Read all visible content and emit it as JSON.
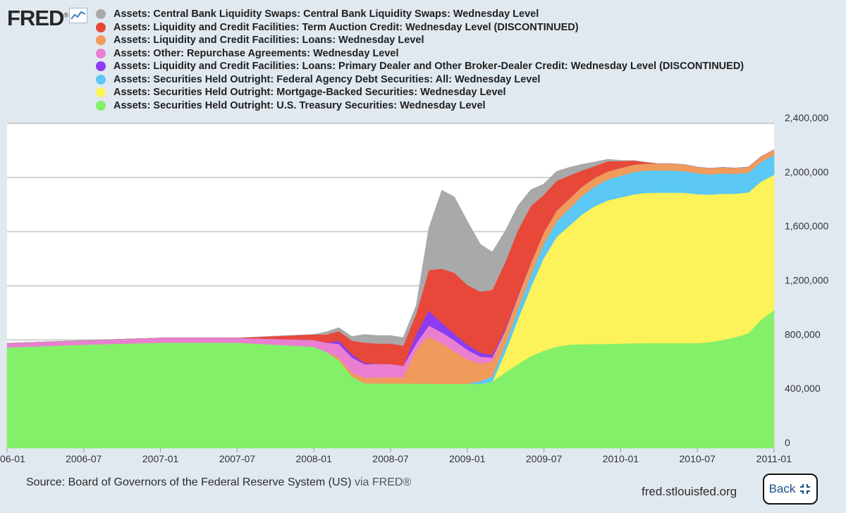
{
  "brand": {
    "logo_text": "FRED",
    "logo_mark": "®",
    "logo_icon": "line-chart-icon"
  },
  "legend": [
    {
      "label": "Assets: Central Bank Liquidity Swaps: Central Bank Liquidity Swaps: Wednesday Level",
      "color": "#a9a9a9"
    },
    {
      "label": "Assets: Liquidity and Credit Facilities: Term Auction Credit: Wednesday Level (DISCONTINUED)",
      "color": "#e8483a"
    },
    {
      "label": "Assets: Liquidity and Credit Facilities: Loans: Wednesday Level",
      "color": "#f09a5c"
    },
    {
      "label": "Assets: Other: Repurchase Agreements: Wednesday Level",
      "color": "#ea7fd2"
    },
    {
      "label": "Assets: Liquidity and Credit Facilities: Loans: Primary Dealer and Other Broker-Dealer Credit: Wednesday Level (DISCONTINUED)",
      "color": "#8b3cf0"
    },
    {
      "label": "Assets: Securities Held Outright: Federal Agency Debt Securities: All: Wednesday Level",
      "color": "#5bc8f5"
    },
    {
      "label": "Assets: Securities Held Outright: Mortgage-Backed Securities: Wednesday Level",
      "color": "#fcf25a"
    },
    {
      "label": "Assets: Securities Held Outright: U.S. Treasury Securities: Wednesday Level",
      "color": "#84f06a"
    }
  ],
  "chart_data": {
    "type": "area",
    "stacked": true,
    "x": [
      "2006-01",
      "2006-07",
      "2007-01",
      "2007-07",
      "2008-01",
      "2008-02",
      "2008-03",
      "2008-04",
      "2008-05",
      "2008-06",
      "2008-07",
      "2008-08",
      "2008-09",
      "2008-10",
      "2008-11",
      "2008-12",
      "2009-01",
      "2009-02",
      "2009-03",
      "2009-04",
      "2009-05",
      "2009-06",
      "2009-07",
      "2009-08",
      "2009-09",
      "2009-10",
      "2009-11",
      "2009-12",
      "2010-01",
      "2010-02",
      "2010-03",
      "2010-04",
      "2010-05",
      "2010-06",
      "2010-07",
      "2010-08",
      "2010-09",
      "2010-10",
      "2010-11",
      "2010-12",
      "2011-01"
    ],
    "x_ticks": [
      "06-01",
      "2006-07",
      "2007-01",
      "2007-07",
      "2008-01",
      "2008-07",
      "2009-01",
      "2009-07",
      "2010-01",
      "2010-07",
      "2011-01"
    ],
    "y_ticks": [
      "0",
      "400,000",
      "800,000",
      "1,200,000",
      "1,600,000",
      "2,000,000",
      "2,400,000"
    ],
    "ylim": [
      0,
      2400000
    ],
    "series": [
      {
        "name": "Assets: Securities Held Outright: U.S. Treasury Securities: Wednesday Level",
        "color": "#84f06a",
        "values": [
          745000,
          765000,
          780000,
          780000,
          750000,
          710000,
          650000,
          530000,
          480000,
          478000,
          478000,
          478000,
          478000,
          476000,
          476000,
          476000,
          476000,
          476000,
          490000,
          560000,
          620000,
          680000,
          720000,
          750000,
          765000,
          768000,
          770000,
          770000,
          773000,
          775000,
          776000,
          777000,
          777000,
          777000,
          777000,
          783000,
          800000,
          820000,
          850000,
          950000,
          1020000
        ]
      },
      {
        "name": "Assets: Securities Held Outright: Mortgage-Backed Securities: Wednesday Level",
        "color": "#fcf25a",
        "values": [
          0,
          0,
          0,
          0,
          0,
          0,
          0,
          0,
          0,
          0,
          0,
          0,
          0,
          0,
          0,
          0,
          0,
          0,
          0,
          150000,
          330000,
          510000,
          680000,
          810000,
          880000,
          960000,
          1020000,
          1060000,
          1080000,
          1100000,
          1110000,
          1110000,
          1110000,
          1110000,
          1100000,
          1090000,
          1080000,
          1060000,
          1040000,
          1020000,
          1000000
        ]
      },
      {
        "name": "Assets: Securities Held Outright: Federal Agency Debt Securities: All: Wednesday Level",
        "color": "#5bc8f5",
        "values": [
          0,
          0,
          0,
          0,
          0,
          0,
          0,
          0,
          0,
          0,
          0,
          0,
          0,
          0,
          0,
          0,
          0,
          20000,
          40000,
          60000,
          75000,
          90000,
          105000,
          115000,
          125000,
          135000,
          145000,
          155000,
          160000,
          165000,
          165000,
          165000,
          165000,
          160000,
          155000,
          150000,
          150000,
          147000,
          145000,
          145000,
          145000
        ]
      },
      {
        "name": "Assets: Liquidity and Credit Facilities: Loans: Wednesday Level",
        "color": "#f09a5c",
        "values": [
          0,
          0,
          0,
          0,
          0,
          0,
          20000,
          30000,
          40000,
          45000,
          45000,
          45000,
          250000,
          350000,
          300000,
          240000,
          180000,
          130000,
          110000,
          100000,
          95000,
          90000,
          85000,
          80000,
          75000,
          70000,
          65000,
          60000,
          58000,
          55000,
          52000,
          50000,
          50000,
          48000,
          46000,
          45000,
          45000,
          43000,
          42000,
          40000,
          40000
        ]
      },
      {
        "name": "Assets: Other: Repurchase Agreements: Wednesday Level",
        "color": "#ea7fd2",
        "values": [
          30000,
          30000,
          35000,
          35000,
          50000,
          70000,
          100000,
          110000,
          100000,
          100000,
          100000,
          85000,
          45000,
          80000,
          80000,
          80000,
          70000,
          50000,
          30000,
          0,
          0,
          0,
          0,
          0,
          0,
          0,
          0,
          0,
          0,
          0,
          0,
          0,
          0,
          0,
          0,
          0,
          0,
          0,
          0,
          0,
          0
        ]
      },
      {
        "name": "Assets: Liquidity and Credit Facilities: Loans: Primary Dealer and Other Broker-Dealer Credit: Wednesday Level (DISCONTINUED)",
        "color": "#8b3cf0",
        "values": [
          0,
          0,
          0,
          0,
          0,
          0,
          25000,
          25000,
          10000,
          0,
          0,
          0,
          70000,
          110000,
          70000,
          50000,
          40000,
          30000,
          20000,
          15000,
          10000,
          0,
          0,
          0,
          0,
          0,
          0,
          0,
          0,
          0,
          0,
          0,
          0,
          0,
          0,
          0,
          0,
          0,
          0,
          0,
          0
        ]
      },
      {
        "name": "Assets: Liquidity and Credit Facilities: Term Auction Credit: Wednesday Level (DISCONTINUED)",
        "color": "#e8483a",
        "values": [
          0,
          0,
          0,
          0,
          40000,
          60000,
          70000,
          100000,
          150000,
          150000,
          150000,
          150000,
          150000,
          300000,
          400000,
          450000,
          440000,
          450000,
          480000,
          490000,
          480000,
          420000,
          280000,
          220000,
          170000,
          120000,
          85000,
          75000,
          50000,
          30000,
          10000,
          0,
          0,
          0,
          0,
          0,
          0,
          0,
          0,
          0,
          0
        ]
      },
      {
        "name": "Assets: Central Bank Liquidity Swaps: Central Bank Liquidity Swaps: Wednesday Level",
        "color": "#a9a9a9",
        "values": [
          0,
          0,
          0,
          0,
          0,
          20000,
          25000,
          30000,
          60000,
          60000,
          60000,
          60000,
          60000,
          310000,
          580000,
          560000,
          470000,
          350000,
          280000,
          230000,
          180000,
          120000,
          80000,
          70000,
          60000,
          45000,
          30000,
          15000,
          5000,
          0,
          0,
          0,
          0,
          0,
          0,
          0,
          0,
          0,
          0,
          0,
          0
        ]
      }
    ],
    "grid": true,
    "legend_position": "top-left"
  },
  "footer": {
    "source_text": "Source: Board of Governors of the Federal Reserve System (US)",
    "via_text": "via FRED®",
    "site": "fred.stlouisfed.org",
    "back_label": "Back"
  }
}
